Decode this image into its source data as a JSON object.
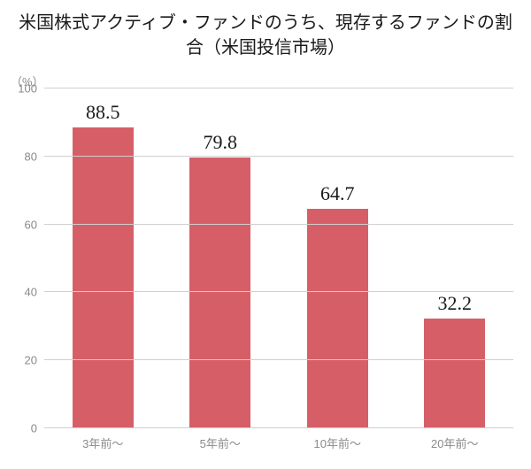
{
  "chart": {
    "type": "bar",
    "title": "米国株式アクティブ・ファンドのうち、現存するファンドの割合（米国投信市場）",
    "y_unit": "（%）",
    "ylim": [
      0,
      100
    ],
    "ytick_step": 20,
    "yticks": [
      0,
      20,
      40,
      60,
      80,
      100
    ],
    "categories": [
      "3年前～",
      "5年前～",
      "10年前～",
      "20年前～"
    ],
    "values": [
      88.5,
      79.8,
      64.7,
      32.2
    ],
    "bar_color": "#d65f67",
    "bar_width_ratio": 0.52,
    "background_color": "#ffffff",
    "grid_color": "#cfcfcf",
    "title_color": "#1a1a1a",
    "tick_label_color": "#8a8a8a",
    "value_label_color": "#1a1a1a",
    "title_fontsize_pt": 15,
    "tick_fontsize_pt": 10,
    "value_fontsize_pt": 16
  }
}
